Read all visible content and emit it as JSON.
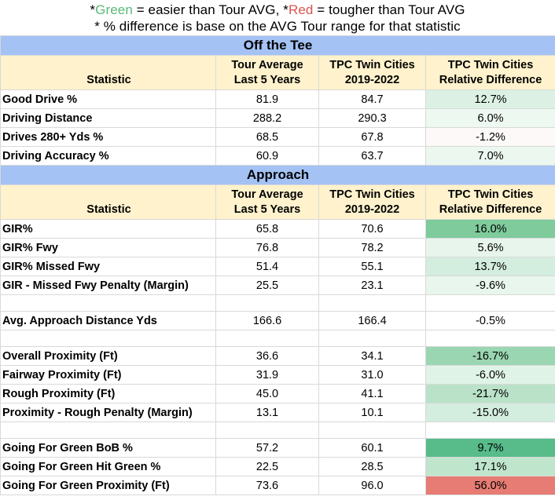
{
  "legend": {
    "line1_prefix": "*",
    "line1_green": "Green",
    "line1_mid": " = easier than Tour AVG, *",
    "line1_red": "Red",
    "line1_suffix": " = tougher than Tour AVG",
    "line2": "* % difference is base on the AVG Tour range for that statistic",
    "green_color": "#5cb87a",
    "red_color": "#d9534f"
  },
  "headers": {
    "statistic": "Statistic",
    "tour_line1": "Tour Average",
    "tour_line2": "Last 5 Years",
    "tpc_line1": "TPC Twin Cities",
    "tpc_line2": "2019-2022",
    "rel_line1": "TPC Twin Cities",
    "rel_line2": "Relative Difference"
  },
  "sections": [
    {
      "title": "Off the Tee",
      "rows": [
        {
          "stat": "Good Drive %",
          "tour": "81.9",
          "tpc": "84.7",
          "diff": "12.7%",
          "bg": "#dcf1e4"
        },
        {
          "stat": "Driving Distance",
          "tour": "288.2",
          "tpc": "290.3",
          "diff": "6.0%",
          "bg": "#edf8f1"
        },
        {
          "stat": "Drives 280+ Yds %",
          "tour": "68.5",
          "tpc": "67.8",
          "diff": "-1.2%",
          "bg": "#fdf9f9"
        },
        {
          "stat": "Driving Accuracy %",
          "tour": "60.9",
          "tpc": "63.7",
          "diff": "7.0%",
          "bg": "#ebf7ef"
        }
      ]
    },
    {
      "title": "Approach",
      "rows": [
        {
          "stat": "GIR%",
          "tour": "65.8",
          "tpc": "70.6",
          "diff": "16.0%",
          "bg": "#7fcb9b"
        },
        {
          "stat": "GIR% Fwy",
          "tour": "76.8",
          "tpc": "78.2",
          "diff": "5.6%",
          "bg": "#e7f5ec"
        },
        {
          "stat": "GIR% Missed Fwy",
          "tour": "51.4",
          "tpc": "55.1",
          "diff": "13.7%",
          "bg": "#d3edde"
        },
        {
          "stat": "GIR - Missed Fwy Penalty (Margin)",
          "tour": "25.5",
          "tpc": "23.1",
          "diff": "-9.6%",
          "bg": "#e8f6ed"
        },
        {
          "blank": true
        },
        {
          "stat": "Avg. Approach Distance Yds",
          "tour": "166.6",
          "tpc": "166.4",
          "diff": "-0.5%",
          "bg": "#ffffff"
        },
        {
          "blank": true
        },
        {
          "stat": "Overall Proximity (Ft)",
          "tour": "36.6",
          "tpc": "34.1",
          "diff": "-16.7%",
          "bg": "#9ad6b1"
        },
        {
          "stat": "Fairway Proximity (Ft)",
          "tour": "31.9",
          "tpc": "31.0",
          "diff": "-6.0%",
          "bg": "#e0f3e7"
        },
        {
          "stat": "Rough Proximity (Ft)",
          "tour": "45.0",
          "tpc": "41.1",
          "diff": "-21.7%",
          "bg": "#b9e2c8"
        },
        {
          "stat": "Proximity - Rough Penalty (Margin)",
          "tour": "13.1",
          "tpc": "10.1",
          "diff": "-15.0%",
          "bg": "#d3edde"
        },
        {
          "blank": true
        },
        {
          "stat": "Going For Green BoB %",
          "tour": "57.2",
          "tpc": "60.1",
          "diff": "9.7%",
          "bg": "#57bb8a"
        },
        {
          "stat": "Going For Green Hit Green %",
          "tour": "22.5",
          "tpc": "28.5",
          "diff": "17.1%",
          "bg": "#c0e5cd"
        },
        {
          "stat": "Going For Green Proximity (Ft)",
          "tour": "73.6",
          "tpc": "96.0",
          "diff": "56.0%",
          "bg": "#e67c73"
        }
      ]
    }
  ]
}
